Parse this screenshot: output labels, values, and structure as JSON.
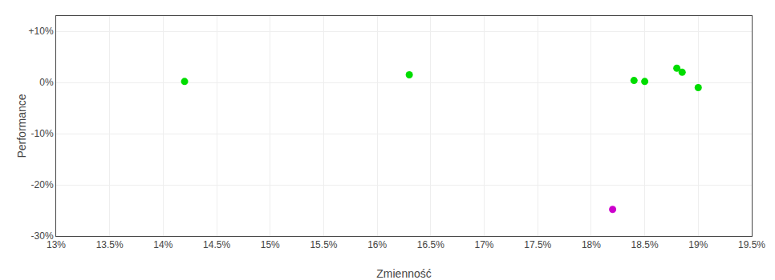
{
  "chart_data": {
    "type": "scatter",
    "xlabel": "Zmienność",
    "ylabel": "Performance",
    "xlim": [
      0.13,
      0.195
    ],
    "ylim": [
      -0.3,
      0.13
    ],
    "xticks": [
      {
        "value": 0.13,
        "label": "13%"
      },
      {
        "value": 0.135,
        "label": "13.5%"
      },
      {
        "value": 0.14,
        "label": "14%"
      },
      {
        "value": 0.145,
        "label": "14.5%"
      },
      {
        "value": 0.15,
        "label": "15%"
      },
      {
        "value": 0.155,
        "label": "15.5%"
      },
      {
        "value": 0.16,
        "label": "16%"
      },
      {
        "value": 0.165,
        "label": "16.5%"
      },
      {
        "value": 0.17,
        "label": "17%"
      },
      {
        "value": 0.175,
        "label": "17.5%"
      },
      {
        "value": 0.18,
        "label": "18%"
      },
      {
        "value": 0.185,
        "label": "18.5%"
      },
      {
        "value": 0.19,
        "label": "19%"
      },
      {
        "value": 0.195,
        "label": "19.5%"
      }
    ],
    "yticks": [
      {
        "value": -0.3,
        "label": "-30%"
      },
      {
        "value": -0.2,
        "label": "-20%"
      },
      {
        "value": -0.1,
        "label": "-10%"
      },
      {
        "value": 0.0,
        "label": "0%"
      },
      {
        "value": 0.1,
        "label": "+10%"
      }
    ],
    "grid": true,
    "series": [
      {
        "color": "#00dd00",
        "x": [
          0.142,
          0.163,
          0.184,
          0.185,
          0.188,
          0.1885,
          0.19
        ],
        "values": [
          0.002,
          0.015,
          0.004,
          0.002,
          0.028,
          0.02,
          -0.01
        ]
      },
      {
        "color": "#cc00cc",
        "x": [
          0.182
        ],
        "values": [
          -0.248
        ]
      }
    ]
  }
}
